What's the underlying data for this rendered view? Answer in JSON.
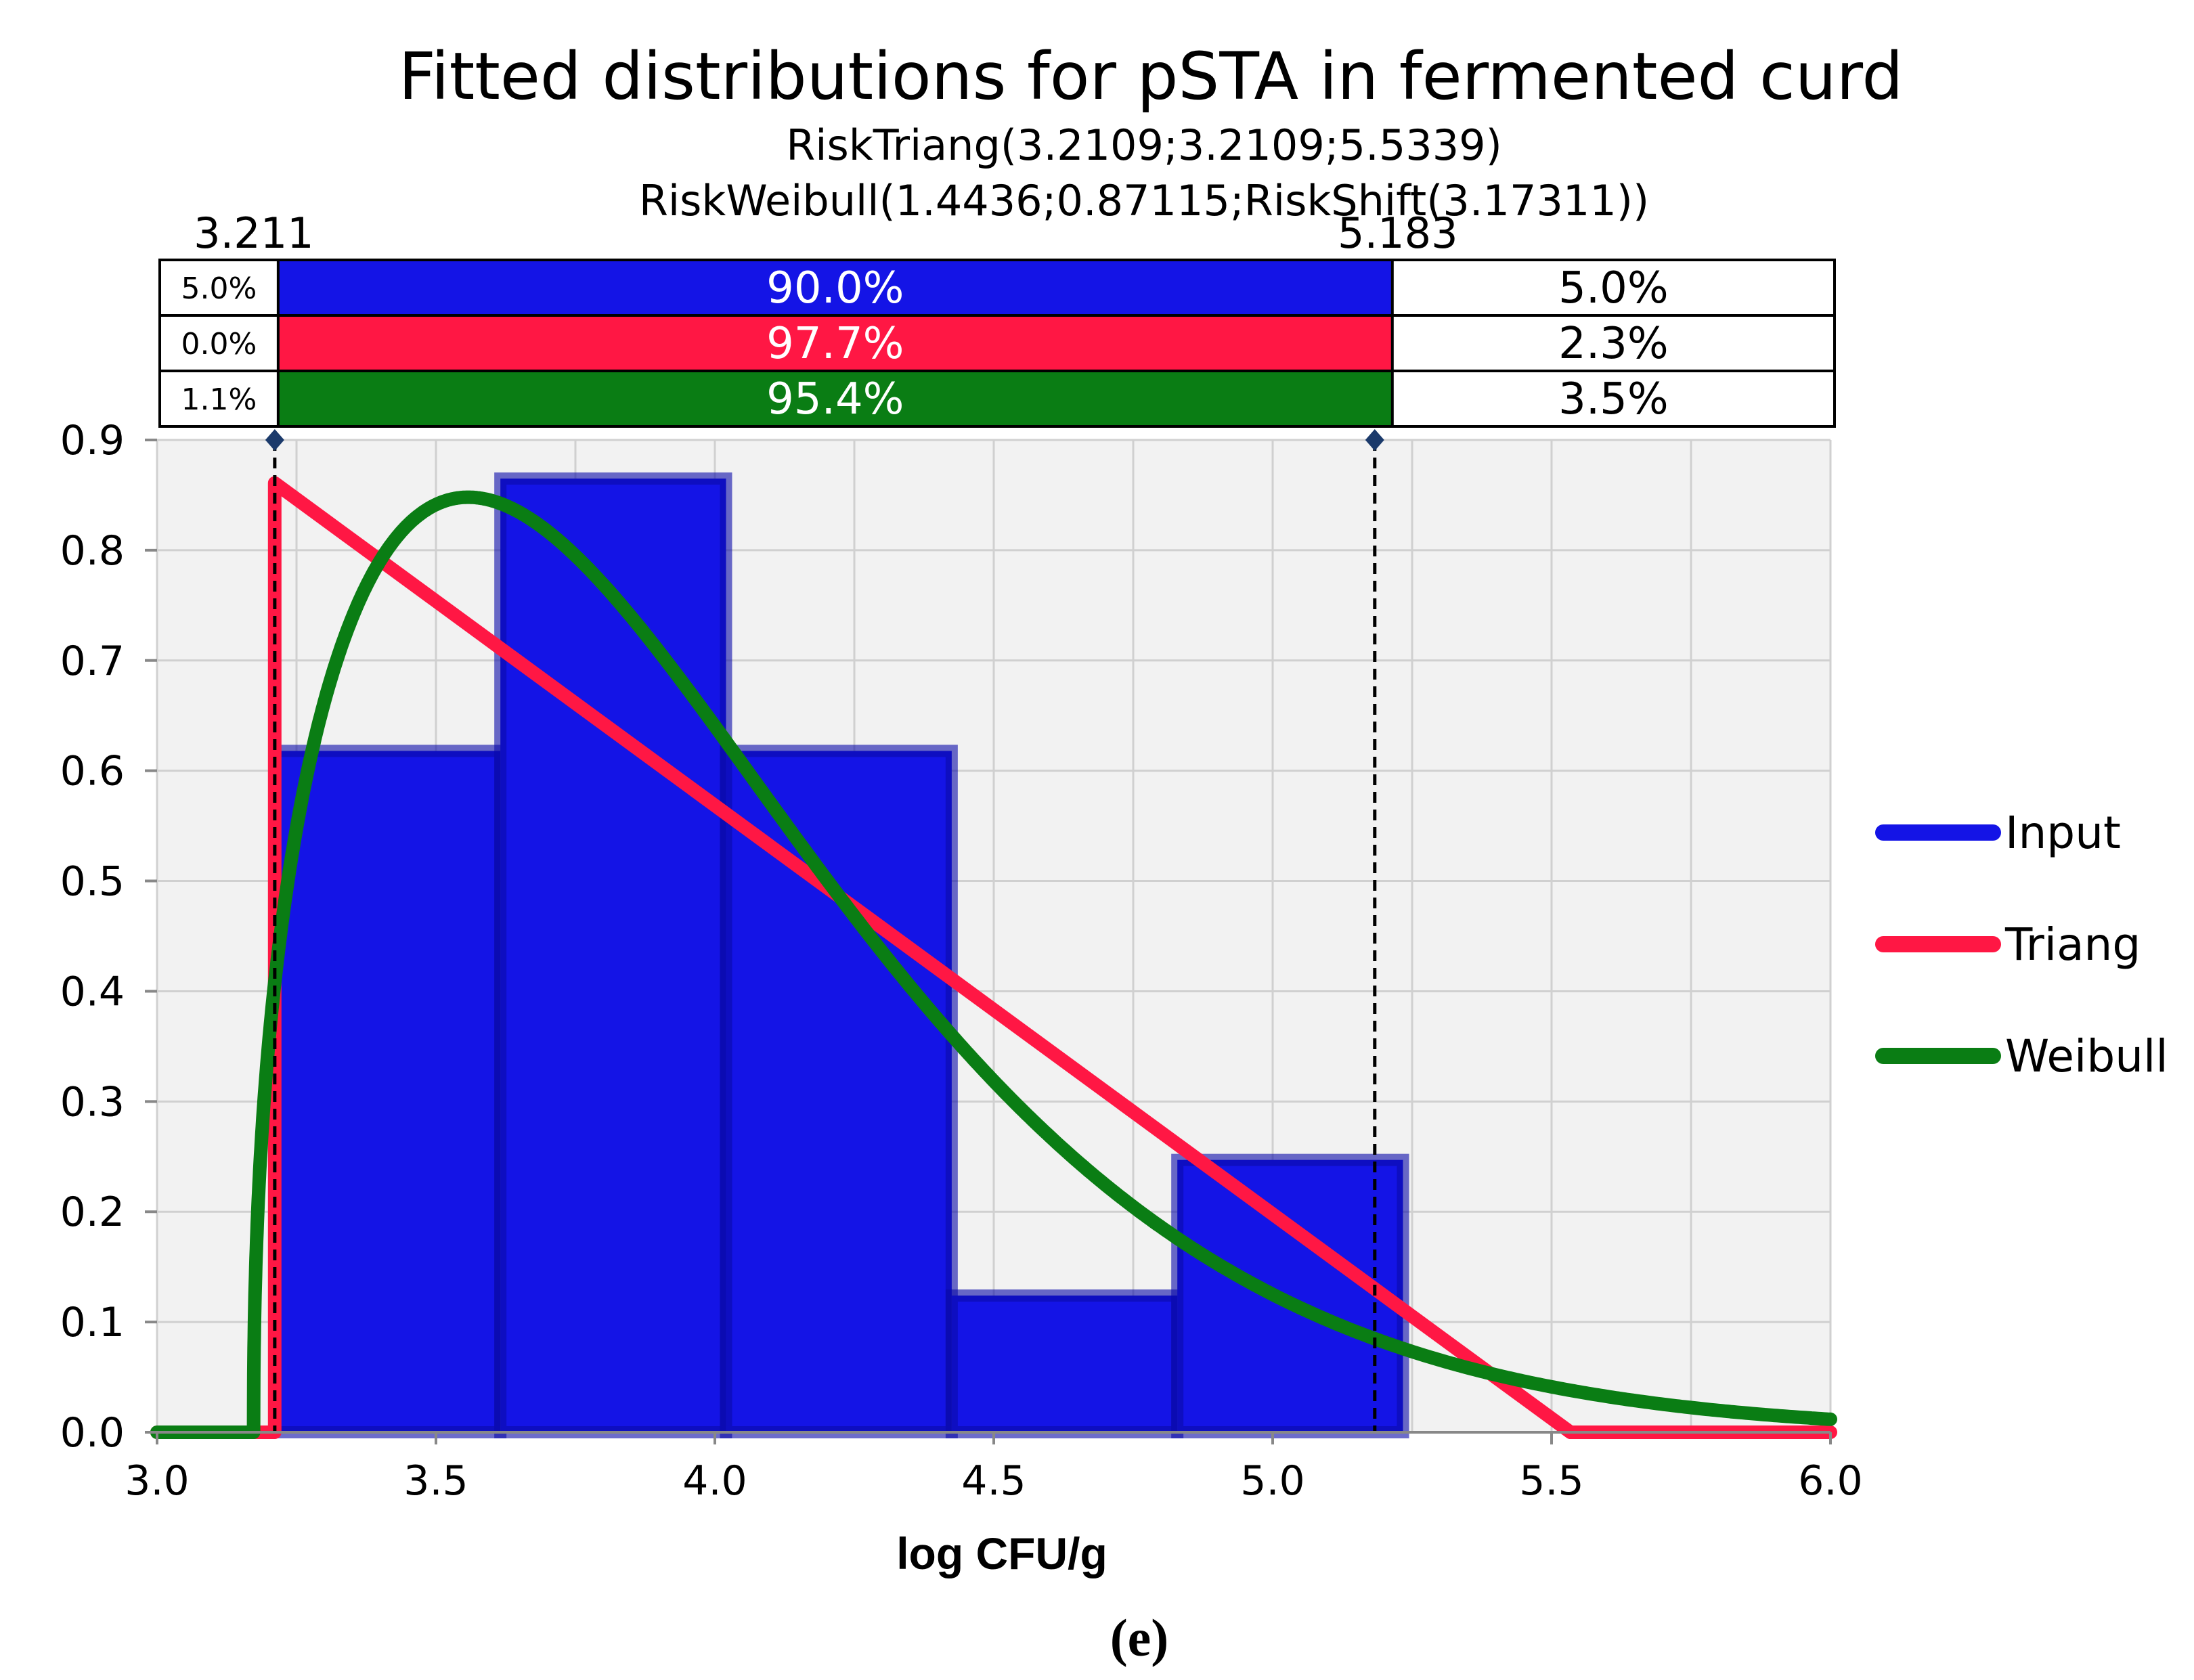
{
  "chart_data": {
    "type": "bar",
    "title": "Fitted distributions for pSTA in fermented curd",
    "subtitles": [
      "RiskTriang(3.2109;3.2109;5.5339)",
      "RiskWeibull(1.4436;0.87115;RiskShift(3.17311))"
    ],
    "xlabel": "log CFU/g",
    "ylabel": "",
    "xlim": [
      3.0,
      6.0
    ],
    "ylim": [
      0.0,
      0.9
    ],
    "x_ticks": [
      "3.0",
      "3.5",
      "4.0",
      "4.5",
      "5.0",
      "5.5",
      "6.0"
    ],
    "y_ticks": [
      "0.0",
      "0.1",
      "0.2",
      "0.3",
      "0.4",
      "0.5",
      "0.6",
      "0.7",
      "0.8",
      "0.9"
    ],
    "grid": true,
    "caption": "(e)",
    "histogram": {
      "name": "Input",
      "color": "#1414e6",
      "bins": [
        {
          "x0": 3.2109,
          "x1": 3.6155,
          "value": 0.618
        },
        {
          "x0": 3.6155,
          "x1": 4.02,
          "value": 0.865
        },
        {
          "x0": 4.02,
          "x1": 4.4246,
          "value": 0.618
        },
        {
          "x0": 4.4246,
          "x1": 4.8291,
          "value": 0.124
        },
        {
          "x0": 4.8291,
          "x1": 5.2336,
          "value": 0.247
        }
      ]
    },
    "triang": {
      "name": "Triang",
      "color": "#ff1744",
      "min": 3.2109,
      "mode": 3.2109,
      "max": 5.5339
    },
    "weibull": {
      "name": "Weibull",
      "color": "#0a7d14",
      "shape": 1.4436,
      "scale": 0.87115,
      "shift": 3.17311
    },
    "markers": {
      "left": {
        "value": 3.211,
        "label": "3.211"
      },
      "right": {
        "value": 5.183,
        "label": "5.183"
      }
    },
    "probability_bands": [
      {
        "series": "Input",
        "color": "#1414e6",
        "left": "5.0%",
        "middle": "90.0%",
        "right": "5.0%"
      },
      {
        "series": "Triang",
        "color": "#ff1744",
        "left": "0.0%",
        "middle": "97.7%",
        "right": "2.3%"
      },
      {
        "series": "Weibull",
        "color": "#0a7d14",
        "left": "1.1%",
        "middle": "95.4%",
        "right": "3.5%"
      }
    ],
    "legend": {
      "position": "right",
      "entries": [
        {
          "label": "Input",
          "color": "#1414e6"
        },
        {
          "label": "Triang",
          "color": "#ff1744"
        },
        {
          "label": "Weibull",
          "color": "#0a7d14"
        }
      ]
    }
  }
}
